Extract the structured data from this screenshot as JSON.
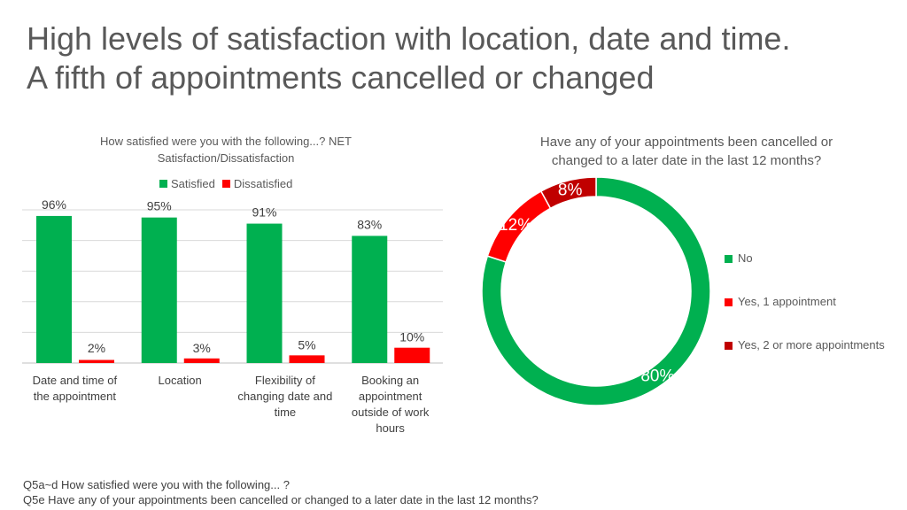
{
  "title_lines": [
    "High levels of satisfaction with location, date and time.",
    "A fifth of appointments cancelled or changed"
  ],
  "footnotes": [
    "Q5a~d How satisfied were you with the following... ?",
    "Q5e Have any of your appointments been cancelled or changed to a later date in the last 12 months?"
  ],
  "colors": {
    "satisfied": "#00b050",
    "dissatisfied": "#ff0000",
    "no": "#00b050",
    "yes_one": "#ff0000",
    "yes_two": "#c00000"
  },
  "chart_data": [
    {
      "type": "bar",
      "title_lines": [
        "How satisfied were you with the following...? NET",
        "Satisfaction/Dissatisfaction"
      ],
      "categories": [
        [
          "Date and time of",
          "the appointment"
        ],
        [
          "Location"
        ],
        [
          "Flexibility of",
          "changing date and",
          "time"
        ],
        [
          "Booking an",
          "appointment",
          "outside of work",
          "hours"
        ]
      ],
      "series": [
        {
          "name": "Satisfied",
          "values": [
            96,
            95,
            91,
            83
          ],
          "labels": [
            "96%",
            "95%",
            "91%",
            "83%"
          ]
        },
        {
          "name": "Dissatisfied",
          "values": [
            2,
            3,
            5,
            10
          ],
          "labels": [
            "2%",
            "3%",
            "5%",
            "10%"
          ]
        }
      ],
      "ylim": [
        0,
        100
      ],
      "grid": true,
      "legend_position": "top"
    },
    {
      "type": "pie",
      "donut": true,
      "title_lines": [
        "Have any of your appointments been cancelled or",
        "changed to a later date in the last 12 months?"
      ],
      "slices": [
        {
          "name": "No",
          "value": 80,
          "label": "80%"
        },
        {
          "name": "Yes, 1 appointment",
          "value": 12,
          "label": "12%"
        },
        {
          "name": "Yes, 2 or more appointments",
          "value": 8,
          "label": "8%"
        }
      ],
      "legend_position": "right"
    }
  ]
}
